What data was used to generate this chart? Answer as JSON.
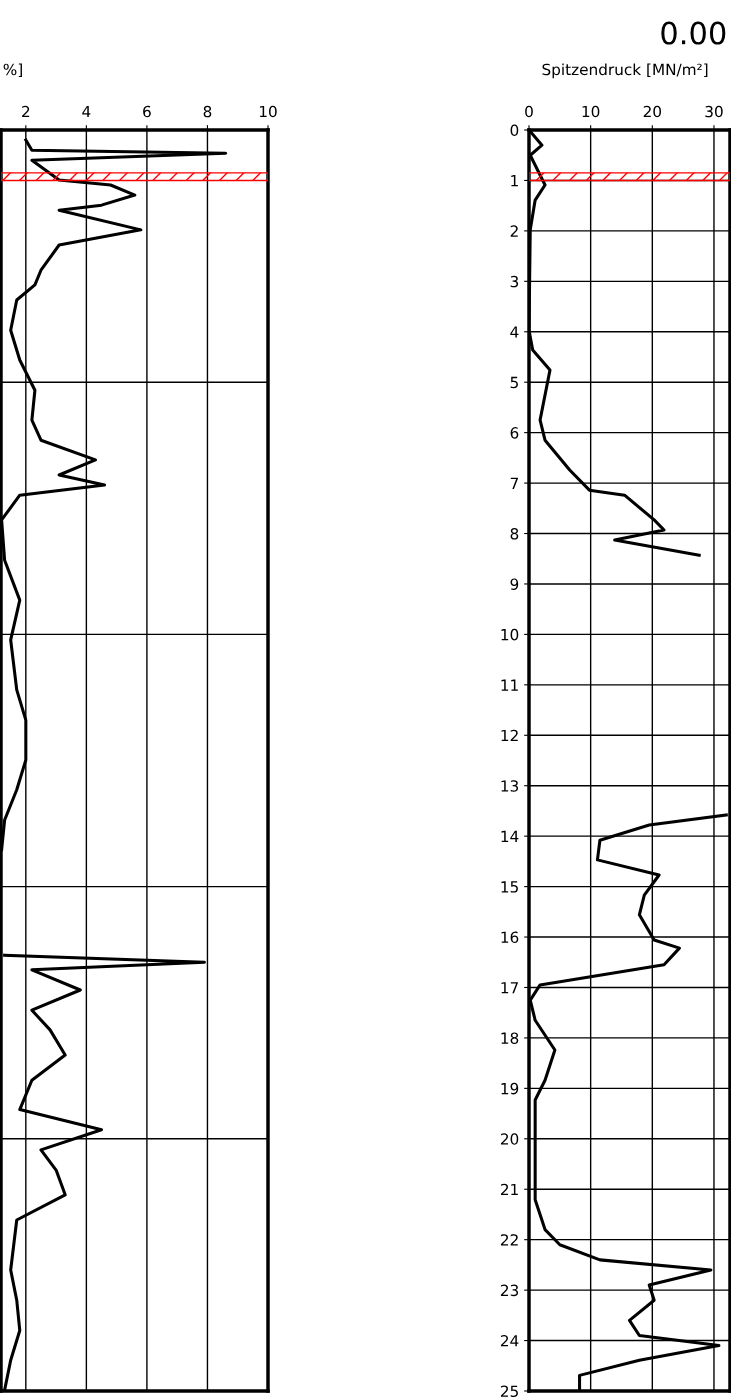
{
  "chart_data": [
    {
      "type": "line",
      "xlabel": "%]",
      "xlim": [
        1.18,
        10
      ],
      "xticks": [
        2,
        4,
        6,
        8,
        10
      ],
      "ylim": [
        25,
        0
      ],
      "yticks": [
        0,
        5,
        10,
        15,
        20,
        25
      ],
      "tick_labels": "x",
      "grid": true,
      "marker": "none",
      "line_style": "solid",
      "bands": [
        {
          "axis": "y",
          "from": 0.85,
          "to": 1.0,
          "color": "#ff0000"
        }
      ],
      "series": [
        {
          "color": "#000000",
          "x": [
            2.0,
            2.2,
            8.6,
            2.2,
            3.1,
            4.8,
            5.6,
            4.5,
            3.1,
            5.8,
            3.1,
            2.5,
            2.3,
            1.7,
            1.5,
            1.8,
            2.3,
            2.2,
            2.5,
            4.3,
            3.1,
            4.6,
            1.8,
            1.2,
            1.3,
            1.8,
            1.5,
            1.7,
            2.0,
            2.0,
            1.7,
            1.3,
            1.2
          ],
          "values": [
            0.2,
            0.4,
            0.46,
            0.6,
            0.99,
            1.09,
            1.29,
            1.49,
            1.59,
            1.98,
            2.28,
            2.78,
            3.07,
            3.37,
            3.97,
            4.56,
            5.16,
            5.75,
            6.15,
            6.54,
            6.84,
            7.04,
            7.24,
            7.73,
            8.53,
            9.32,
            10.11,
            11.1,
            11.7,
            12.49,
            13.08,
            13.68,
            14.27
          ]
        },
        {
          "color": "#000000",
          "x": [
            1.3,
            7.9,
            2.2,
            3.8,
            2.2,
            2.8,
            3.3,
            2.2,
            1.8,
            4.5,
            2.5,
            3.0,
            3.3,
            1.7,
            1.5,
            1.7,
            1.8,
            1.5,
            1.3
          ],
          "values": [
            16.36,
            16.5,
            16.65,
            17.05,
            17.45,
            17.84,
            18.34,
            18.84,
            19.42,
            19.82,
            20.22,
            20.62,
            21.11,
            21.61,
            22.6,
            23.2,
            23.8,
            24.39,
            24.98
          ]
        }
      ]
    },
    {
      "type": "line",
      "xlabel": "Spitzendruck [MN/m²]",
      "title": "0.00",
      "xlim": [
        0,
        32.6
      ],
      "xticks": [
        0,
        10,
        20,
        30
      ],
      "ylim": [
        25,
        0
      ],
      "yticks": [
        0,
        1,
        2,
        3,
        4,
        5,
        6,
        7,
        8,
        9,
        10,
        11,
        12,
        13,
        14,
        15,
        16,
        17,
        18,
        19,
        20,
        21,
        22,
        23,
        24,
        25
      ],
      "grid": true,
      "marker": "none",
      "line_style": "solid",
      "bands": [
        {
          "axis": "y",
          "from": 0.85,
          "to": 1.0,
          "color": "#ff0000"
        }
      ],
      "series": [
        {
          "color": "#000000",
          "x": [
            0,
            2.1,
            0.2,
            2.6,
            1.0,
            0.2,
            0,
            0.6,
            3.4,
            1.8,
            2.6,
            6.6,
            9.8,
            15.5,
            20.3,
            21.9,
            13.9,
            27.6
          ],
          "values": [
            0,
            0.3,
            0.5,
            1.09,
            1.39,
            1.98,
            3.97,
            4.36,
            4.76,
            5.75,
            6.15,
            6.74,
            7.14,
            7.24,
            7.73,
            7.93,
            8.13,
            8.43
          ]
        },
        {
          "color": "#000000",
          "x": [
            32.0,
            19.5,
            11.5,
            11.1,
            21.1,
            18.7,
            17.9,
            20.3,
            24.4,
            21.9,
            1.8,
            0.2,
            1.0,
            4.2,
            2.6,
            1.0,
            1.0,
            2.6,
            5.0,
            11.5,
            29.5,
            19.5,
            20.3,
            16.3,
            17.9,
            30.8,
            17.9,
            8.2,
            8.2
          ],
          "values": [
            13.58,
            13.78,
            14.08,
            14.47,
            14.77,
            15.17,
            15.56,
            16.06,
            16.22,
            16.55,
            16.95,
            17.25,
            17.65,
            18.24,
            18.84,
            19.23,
            21.21,
            21.8,
            22.1,
            22.4,
            22.6,
            22.9,
            23.2,
            23.6,
            23.9,
            24.1,
            24.39,
            24.69,
            24.98
          ]
        }
      ]
    }
  ]
}
